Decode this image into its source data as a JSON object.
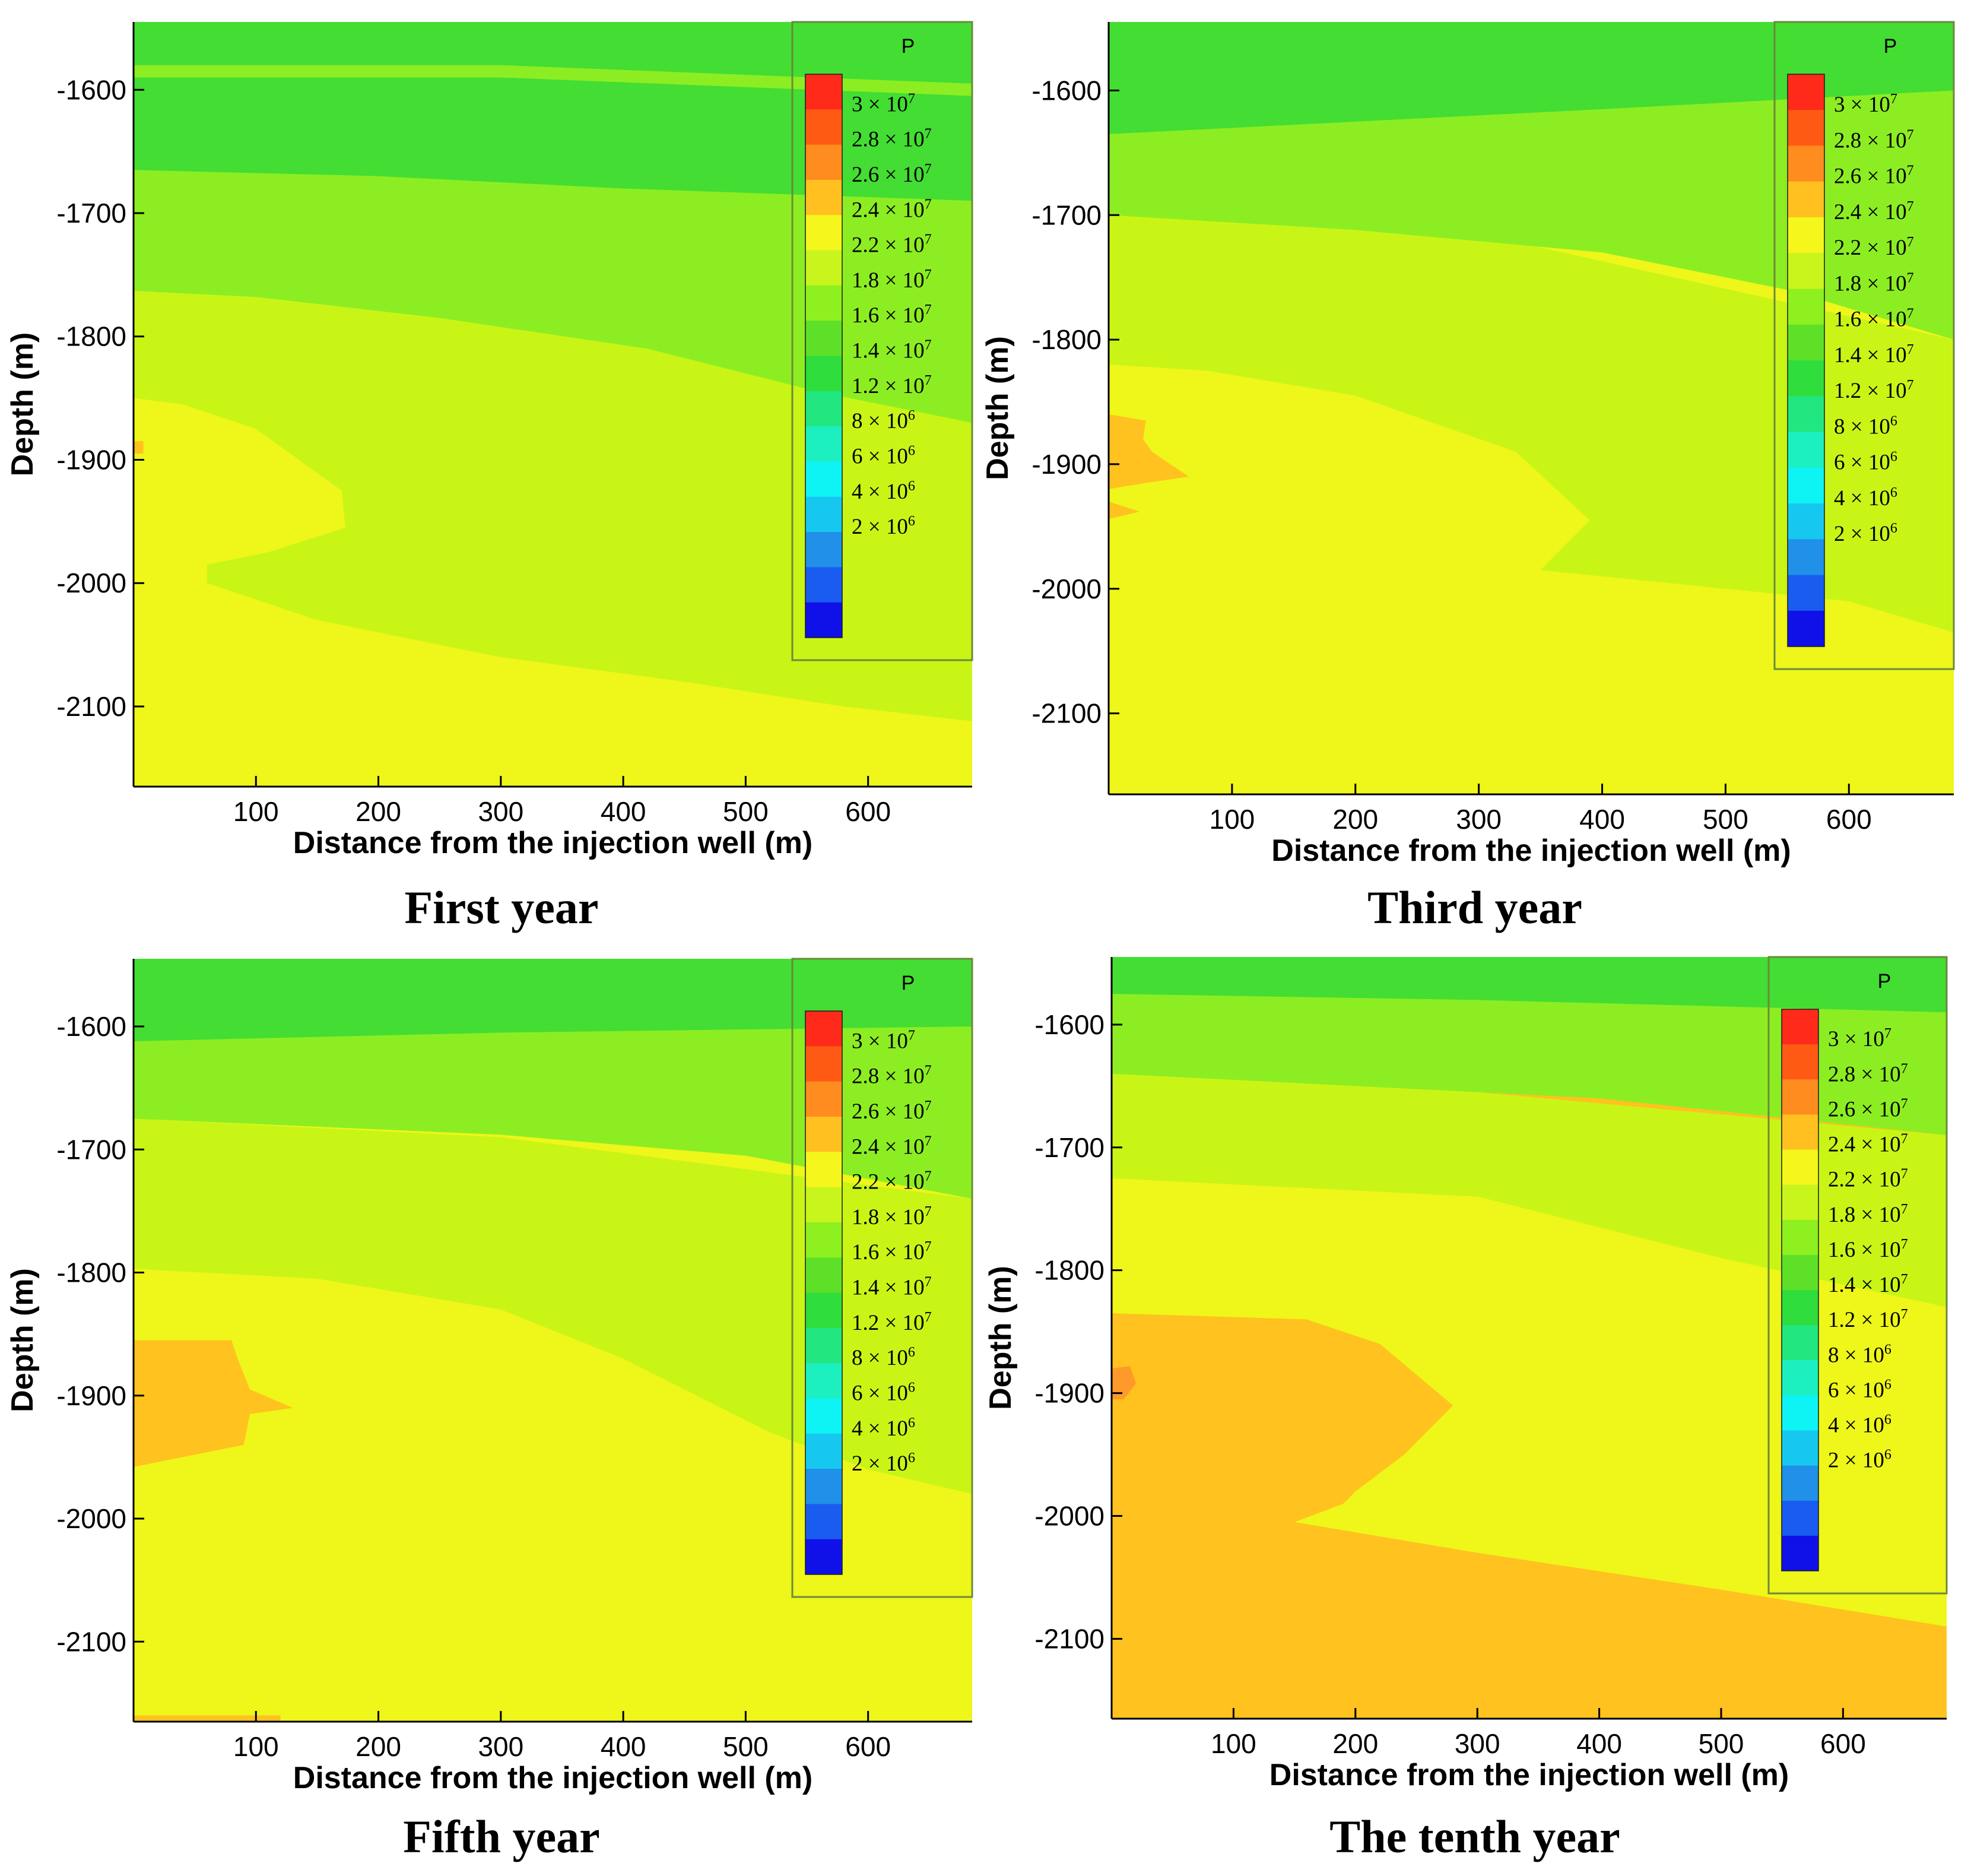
{
  "figure": {
    "legend_title": "P",
    "legend_labels": [
      {
        "mant": "3",
        "exp": "7"
      },
      {
        "mant": "2.8",
        "exp": "7"
      },
      {
        "mant": "2.6",
        "exp": "7"
      },
      {
        "mant": "2.4",
        "exp": "7"
      },
      {
        "mant": "2.2",
        "exp": "7"
      },
      {
        "mant": "1.8",
        "exp": "7"
      },
      {
        "mant": "1.6",
        "exp": "7"
      },
      {
        "mant": "1.4",
        "exp": "7"
      },
      {
        "mant": "1.2",
        "exp": "7"
      },
      {
        "mant": "8",
        "exp": "6"
      },
      {
        "mant": "6",
        "exp": "6"
      },
      {
        "mant": "4",
        "exp": "6"
      },
      {
        "mant": "2",
        "exp": "6"
      }
    ],
    "legend_colors": [
      "#ff2a1a",
      "#ff5a14",
      "#ff8c1e",
      "#ffc020",
      "#f4f61c",
      "#c8f51c",
      "#8ef01e",
      "#5ee028",
      "#2fdd3c",
      "#22e680",
      "#1cf0c0",
      "#0ef4f4",
      "#16c8f0",
      "#2090e8",
      "#1a5cf0",
      "#1010e8"
    ],
    "field_colors": {
      "green": "#43dd33",
      "light_green": "#8cee22",
      "yellow_green": "#c9f516",
      "yellow": "#eef61a",
      "orange": "#ffc21e",
      "dark_orange": "#ff9a2a"
    },
    "panels": [
      {
        "caption": "First year"
      },
      {
        "caption": "Third year"
      },
      {
        "caption": "Fifth year"
      },
      {
        "caption": "The tenth year"
      }
    ]
  },
  "chart_data": [
    {
      "type": "heatmap",
      "title": "First year",
      "xlabel": "Distance from the injection well (m)",
      "ylabel": "Depth (m)",
      "xlim": [
        0,
        685
      ],
      "ylim": [
        -2165,
        -1545
      ],
      "x_ticks": [
        100,
        200,
        300,
        400,
        500,
        600
      ],
      "y_ticks": [
        -1600,
        -1700,
        -1800,
        -1900,
        -2000,
        -2100
      ],
      "legend": "P (Pa)",
      "zones": [
        {
          "band": "1.6-1.8e7",
          "boundary_depth_at_x0": -1580,
          "boundary_depth_at_x685": -1595
        },
        {
          "band": "1.8-2.2e7",
          "boundary_depth_at_x0": -1665,
          "boundary_depth_at_x685": -1690
        },
        {
          "band": "2.2-2.4e7",
          "boundary_depth_at_x0": -1763,
          "boundary_depth_at_x685": -1870
        },
        {
          "band": "2.4-2.6e7",
          "region": "lower zone, front reaching x≈170 m at -1930 m and below -2110 m at far edge"
        }
      ]
    },
    {
      "type": "heatmap",
      "title": "Third year",
      "xlabel": "Distance from the injection well (m)",
      "ylabel": "Depth (m)",
      "xlim": [
        0,
        685
      ],
      "ylim": [
        -2165,
        -1545
      ],
      "x_ticks": [
        100,
        200,
        300,
        400,
        500,
        600
      ],
      "y_ticks": [
        -1600,
        -1700,
        -1800,
        -1900,
        -2000,
        -2100
      ],
      "legend": "P (Pa)",
      "zones": [
        {
          "band": "1.6-1.8e7",
          "boundary_depth_at_x0": -1635,
          "boundary_depth_at_x685": -1600
        },
        {
          "band": "1.8-2.2e7",
          "boundary_depth_at_x0": -1700,
          "boundary_depth_at_x685": -1800
        },
        {
          "band": "2.2-2.4e7",
          "boundary_depth_at_x0": -1820,
          "boundary_depth_at_x685": -2035
        },
        {
          "band": "2.6-2.8e7",
          "region": "small zone near well, x<70 m, depth -1860 to -1940 m"
        }
      ]
    },
    {
      "type": "heatmap",
      "title": "Fifth year",
      "xlabel": "Distance from the injection well (m)",
      "ylabel": "Depth (m)",
      "xlim": [
        0,
        685
      ],
      "ylim": [
        -2165,
        -1545
      ],
      "x_ticks": [
        100,
        200,
        300,
        400,
        500,
        600
      ],
      "y_ticks": [
        -1600,
        -1700,
        -1800,
        -1900,
        -2000,
        -2100
      ],
      "legend": "P (Pa)",
      "zones": [
        {
          "band": "1.6-1.8e7",
          "boundary_depth_at_x0": -1612,
          "boundary_depth_at_x685": -1600
        },
        {
          "band": "1.8-2.2e7",
          "boundary_depth_at_x0": -1675,
          "boundary_depth_at_x685": -1740
        },
        {
          "band": "2.2-2.4e7",
          "boundary_depth_at_x0": -1797,
          "boundary_depth_at_x685": -1980
        },
        {
          "band": "2.6-2.8e7",
          "region": "zone near well, x<135 m, depth -1855 to -1958 m"
        }
      ]
    },
    {
      "type": "heatmap",
      "title": "The tenth year",
      "xlabel": "Distance from the injection well (m)",
      "ylabel": "Depth (m)",
      "xlim": [
        0,
        685
      ],
      "ylim": [
        -2165,
        -1545
      ],
      "x_ticks": [
        100,
        200,
        300,
        400,
        500,
        600
      ],
      "y_ticks": [
        -1600,
        -1700,
        -1800,
        -1900,
        -2000,
        -2100
      ],
      "legend": "P (Pa)",
      "zones": [
        {
          "band": "1.6-1.8e7",
          "boundary_depth_at_x0": -1575,
          "boundary_depth_at_x685": -1590
        },
        {
          "band": "1.8-2.2e7",
          "boundary_depth_at_x0": -1640,
          "boundary_depth_at_x685": -1690
        },
        {
          "band": "2.2-2.4e7",
          "boundary_depth_at_x0": -1725,
          "boundary_depth_at_x685": -1830
        },
        {
          "band": "2.6-2.8e7",
          "region": "large lower zone, front reaching x≈280 m at -1910 m and below -2090 m at far edge"
        },
        {
          "band": "2.8-3.0e7",
          "region": "small spot at well, depth ≈-1890 m"
        }
      ]
    }
  ]
}
